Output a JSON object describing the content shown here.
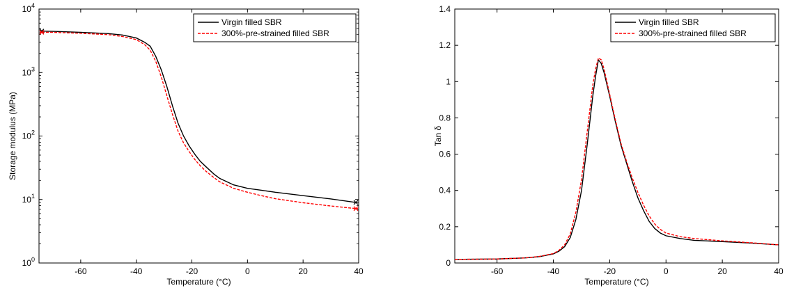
{
  "chart_data": [
    {
      "type": "line",
      "title": "",
      "xlabel": "Temperature (°C)",
      "ylabel": "Storage modulus (MPa)",
      "xlim": [
        -75,
        40
      ],
      "ylim": [
        1,
        10000
      ],
      "yscale": "log",
      "grid": false,
      "legend_position": "top-right",
      "xticks": [
        -60,
        -40,
        -20,
        0,
        20,
        40
      ],
      "xtick_labels": [
        "-60",
        "-40",
        "-20",
        "0",
        "20",
        "40"
      ],
      "yticks": [
        1,
        10,
        100,
        1000,
        10000
      ],
      "ytick_labels": [
        {
          "base": "10",
          "exp": "0"
        },
        {
          "base": "10",
          "exp": "1"
        },
        {
          "base": "10",
          "exp": "2"
        },
        {
          "base": "10",
          "exp": "3"
        },
        {
          "base": "10",
          "exp": "4"
        }
      ],
      "series": [
        {
          "name": "Virgin filled SBR",
          "color": "#000000",
          "style": "solid",
          "end_markers": true,
          "x": [
            -74,
            -70,
            -60,
            -50,
            -45,
            -40,
            -37,
            -35,
            -33,
            -31,
            -29,
            -27,
            -25,
            -23,
            -21,
            -19,
            -17,
            -15,
            -12,
            -10,
            -5,
            0,
            5,
            10,
            20,
            30,
            39
          ],
          "y": [
            4500,
            4450,
            4300,
            4100,
            3900,
            3500,
            3000,
            2600,
            1800,
            1100,
            600,
            300,
            160,
            100,
            70,
            52,
            40,
            33,
            25,
            21.5,
            17,
            15,
            14,
            13,
            11.5,
            10.2,
            9
          ]
        },
        {
          "name": "300%-pre-strained filled SBR",
          "color": "#ff0000",
          "style": "dashed",
          "end_markers": true,
          "x": [
            -74,
            -70,
            -60,
            -50,
            -45,
            -40,
            -37,
            -35,
            -33,
            -31,
            -29,
            -27,
            -25,
            -23,
            -21,
            -19,
            -17,
            -15,
            -12,
            -10,
            -5,
            0,
            5,
            10,
            20,
            30,
            39
          ],
          "y": [
            4300,
            4300,
            4150,
            3950,
            3700,
            3300,
            2750,
            2250,
            1500,
            850,
            430,
            220,
            120,
            78,
            57,
            43,
            34,
            28,
            22,
            19,
            15,
            13,
            11.5,
            10.3,
            8.9,
            7.9,
            7.2
          ]
        }
      ]
    },
    {
      "type": "line",
      "title": "",
      "xlabel": "Temperature (°C)",
      "ylabel": "Tan δ",
      "xlim": [
        -75,
        40
      ],
      "ylim": [
        0,
        1.4
      ],
      "yscale": "linear",
      "grid": false,
      "legend_position": "top-right",
      "xticks": [
        -60,
        -40,
        -20,
        0,
        20,
        40
      ],
      "xtick_labels": [
        "-60",
        "-40",
        "-20",
        "0",
        "20",
        "40"
      ],
      "yticks": [
        0,
        0.2,
        0.4,
        0.6,
        0.8,
        1,
        1.2,
        1.4
      ],
      "ytick_labels": [
        "0",
        "0.2",
        "0.4",
        "0.6",
        "0.8",
        "1",
        "1.2",
        "1.4"
      ],
      "series": [
        {
          "name": "Virgin filled SBR",
          "color": "#000000",
          "style": "solid",
          "x": [
            -75,
            -60,
            -50,
            -45,
            -40,
            -38,
            -36,
            -34,
            -32,
            -30,
            -28,
            -26,
            -25,
            -24,
            -23,
            -22,
            -20,
            -18,
            -16,
            -14,
            -12,
            -10,
            -8,
            -6,
            -4,
            -2,
            0,
            5,
            10,
            20,
            30,
            40
          ],
          "y": [
            0.02,
            0.022,
            0.028,
            0.035,
            0.05,
            0.065,
            0.09,
            0.14,
            0.24,
            0.4,
            0.65,
            0.92,
            1.03,
            1.12,
            1.1,
            1.05,
            0.92,
            0.78,
            0.65,
            0.55,
            0.45,
            0.36,
            0.29,
            0.23,
            0.19,
            0.165,
            0.15,
            0.135,
            0.125,
            0.118,
            0.11,
            0.1
          ]
        },
        {
          "name": "300%-pre-strained filled SBR",
          "color": "#ff0000",
          "style": "dashed",
          "x": [
            -75,
            -60,
            -50,
            -45,
            -40,
            -38,
            -36,
            -34,
            -32,
            -30,
            -28,
            -26,
            -25,
            -24,
            -23,
            -22,
            -20,
            -18,
            -16,
            -14,
            -12,
            -10,
            -8,
            -6,
            -4,
            -2,
            0,
            5,
            10,
            20,
            30,
            40
          ],
          "y": [
            0.02,
            0.022,
            0.028,
            0.036,
            0.052,
            0.07,
            0.1,
            0.16,
            0.28,
            0.46,
            0.72,
            0.98,
            1.07,
            1.13,
            1.12,
            1.07,
            0.93,
            0.79,
            0.66,
            0.56,
            0.47,
            0.39,
            0.32,
            0.26,
            0.215,
            0.185,
            0.165,
            0.145,
            0.135,
            0.122,
            0.112,
            0.1
          ]
        }
      ]
    }
  ]
}
